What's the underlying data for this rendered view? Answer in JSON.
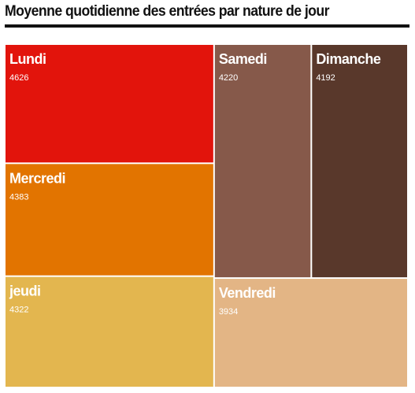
{
  "title": "Moyenne quotidienne des entrées par nature de jour",
  "chart_data": {
    "type": "treemap",
    "title": "Moyenne quotidienne des entrées par nature de jour",
    "items": [
      {
        "label": "Lundi",
        "value": 4626,
        "color": "#e2140c"
      },
      {
        "label": "Mercredi",
        "value": 4383,
        "color": "#e27400"
      },
      {
        "label": "jeudi",
        "value": 4322,
        "color": "#e3b64f"
      },
      {
        "label": "Samedi",
        "value": 4220,
        "color": "#86594a"
      },
      {
        "label": "Dimanche",
        "value": 4192,
        "color": "#59382b"
      },
      {
        "label": "Vendredi",
        "value": 3934,
        "color": "#e3b585"
      }
    ],
    "value_labels": [
      "4626",
      "4383",
      "4322",
      "4220",
      "4192",
      "3934"
    ]
  }
}
